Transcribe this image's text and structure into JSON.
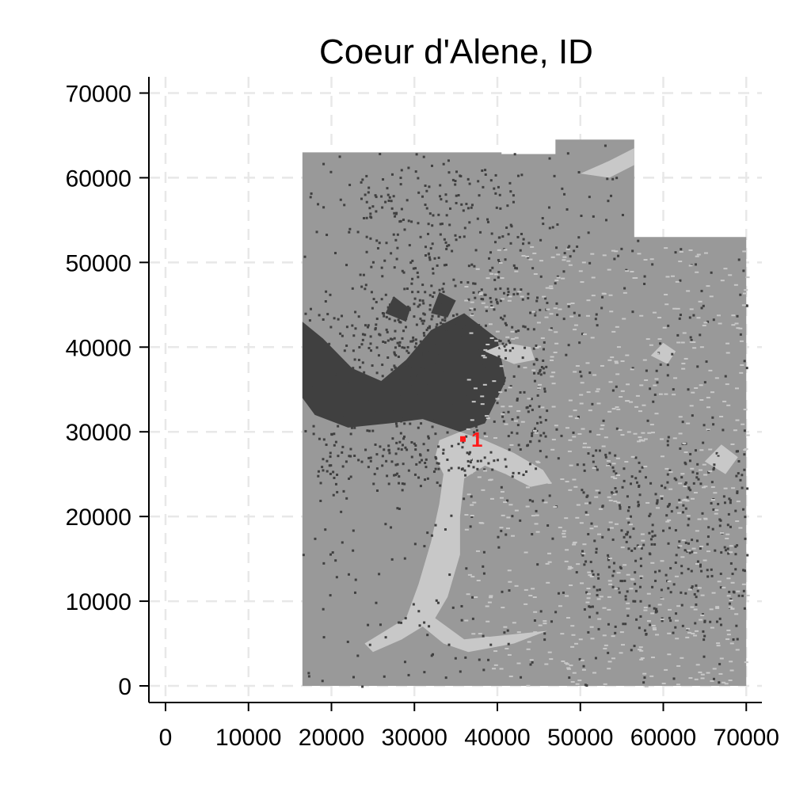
{
  "chart_data": {
    "type": "heatmap",
    "title": "Coeur d'Alene, ID",
    "xlabel": "",
    "ylabel": "",
    "xlim": [
      -2000,
      72000
    ],
    "ylim": [
      -2000,
      72000
    ],
    "x_ticks": [
      0,
      10000,
      20000,
      30000,
      40000,
      50000,
      60000,
      70000
    ],
    "y_ticks": [
      0,
      10000,
      20000,
      30000,
      40000,
      50000,
      60000,
      70000
    ],
    "x_tick_labels": [
      "0",
      "10000",
      "20000",
      "30000",
      "40000",
      "50000",
      "60000",
      "70000"
    ],
    "y_tick_labels": [
      "0",
      "10000",
      "20000",
      "30000",
      "40000",
      "50000",
      "60000",
      "70000"
    ],
    "grid": true,
    "legend": "none",
    "colors": {
      "land": "#999999",
      "urban": "#404040",
      "water": "#c8c8c8",
      "marker": "#ff1a1a"
    },
    "region_extent": {
      "main": {
        "x": [
          16500,
          70000
        ],
        "y": [
          0,
          63000
        ]
      },
      "top_extension": {
        "x": [
          47000,
          56500
        ],
        "y": [
          63000,
          64500
        ]
      },
      "notch_excluded": {
        "x": [
          56500,
          70000
        ],
        "y": [
          53000,
          64500
        ]
      }
    },
    "marker": {
      "label": "1",
      "x": 35800,
      "y": 29200
    }
  }
}
